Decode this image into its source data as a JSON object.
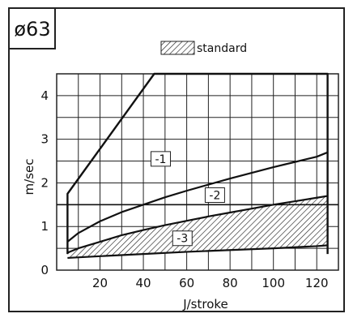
{
  "chart_data": {
    "type": "line",
    "badge": "ø63",
    "title": "",
    "xlabel": "J/stroke",
    "ylabel": "m/sec",
    "xlim": [
      0,
      130
    ],
    "ylim": [
      0,
      4.5
    ],
    "xticks": [
      20,
      40,
      60,
      80,
      100,
      120
    ],
    "yticks": [
      0,
      1,
      2,
      3,
      4
    ],
    "grid": true,
    "legend": {
      "label": "standard",
      "placement": "top-center"
    },
    "max_line": {
      "x": [
        5,
        5,
        45,
        125,
        125
      ],
      "y": [
        0.37,
        1.75,
        4.5,
        4.5,
        0.37
      ]
    },
    "reference_line": {
      "y": 1.5
    },
    "series": [
      {
        "name": "-1",
        "x": [
          5,
          10,
          20,
          30,
          40,
          50,
          60,
          70,
          80,
          90,
          100,
          110,
          120,
          125
        ],
        "y": [
          0.65,
          0.85,
          1.12,
          1.33,
          1.5,
          1.67,
          1.82,
          1.96,
          2.1,
          2.23,
          2.36,
          2.48,
          2.6,
          2.7
        ]
      },
      {
        "name": "-2",
        "x": [
          5,
          10,
          20,
          30,
          40,
          50,
          60,
          70,
          80,
          90,
          100,
          110,
          120,
          125
        ],
        "y": [
          0.4,
          0.5,
          0.65,
          0.8,
          0.92,
          1.03,
          1.13,
          1.23,
          1.32,
          1.41,
          1.5,
          1.58,
          1.66,
          1.7
        ]
      },
      {
        "name": "-3",
        "x": [
          5,
          20,
          40,
          60,
          80,
          100,
          120,
          125
        ],
        "y": [
          0.28,
          0.32,
          0.37,
          0.42,
          0.46,
          0.5,
          0.55,
          0.57
        ]
      }
    ],
    "standard_band": {
      "upper_series": "-2",
      "lower_series": "-3"
    }
  }
}
